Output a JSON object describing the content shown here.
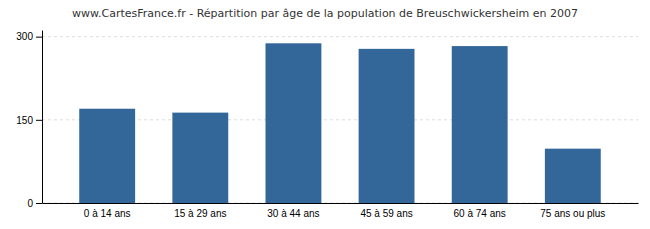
{
  "chart_data": {
    "type": "bar",
    "title": "www.CartesFrance.fr - Répartition par âge de la population de Breuschwickersheim en 2007",
    "categories": [
      "0 à 14 ans",
      "15 à 29 ans",
      "30 à 44 ans",
      "45 à 59 ans",
      "60 à 74 ans",
      "75 ans ou plus"
    ],
    "values": [
      170,
      163,
      288,
      278,
      283,
      98
    ],
    "color": "#336699",
    "ylim": [
      0,
      312
    ],
    "yticks": [
      0,
      150,
      300
    ],
    "grid": true
  }
}
